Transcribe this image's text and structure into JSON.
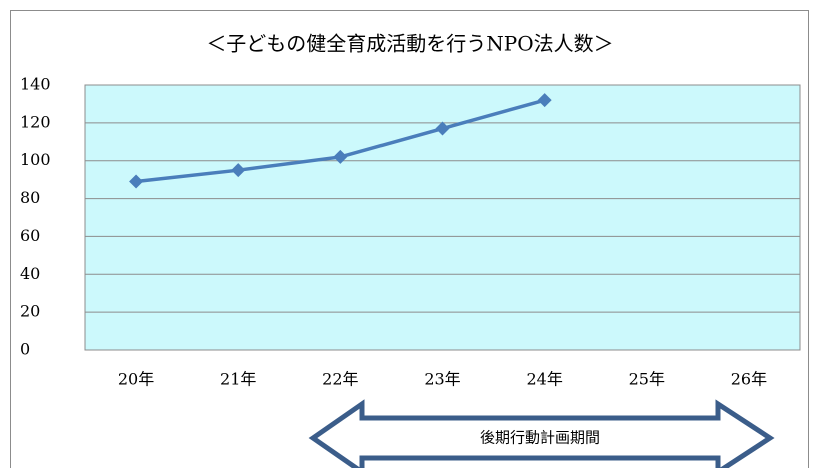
{
  "chart_data": {
    "type": "line",
    "title": "＜子どもの健全育成活動を行うNPO法人数＞",
    "categories": [
      "20年",
      "21年",
      "22年",
      "23年",
      "24年",
      "25年",
      "26年"
    ],
    "series": [
      {
        "color": "#4a7ebb",
        "values": [
          89,
          95,
          102,
          117,
          132,
          null,
          null
        ]
      }
    ],
    "ylim": [
      0,
      140
    ],
    "yticks": [
      0,
      20,
      40,
      60,
      80,
      100,
      120,
      140
    ],
    "grid": true,
    "plot_background": "#ccf9fc",
    "annotation": "後期行動計画期間"
  }
}
